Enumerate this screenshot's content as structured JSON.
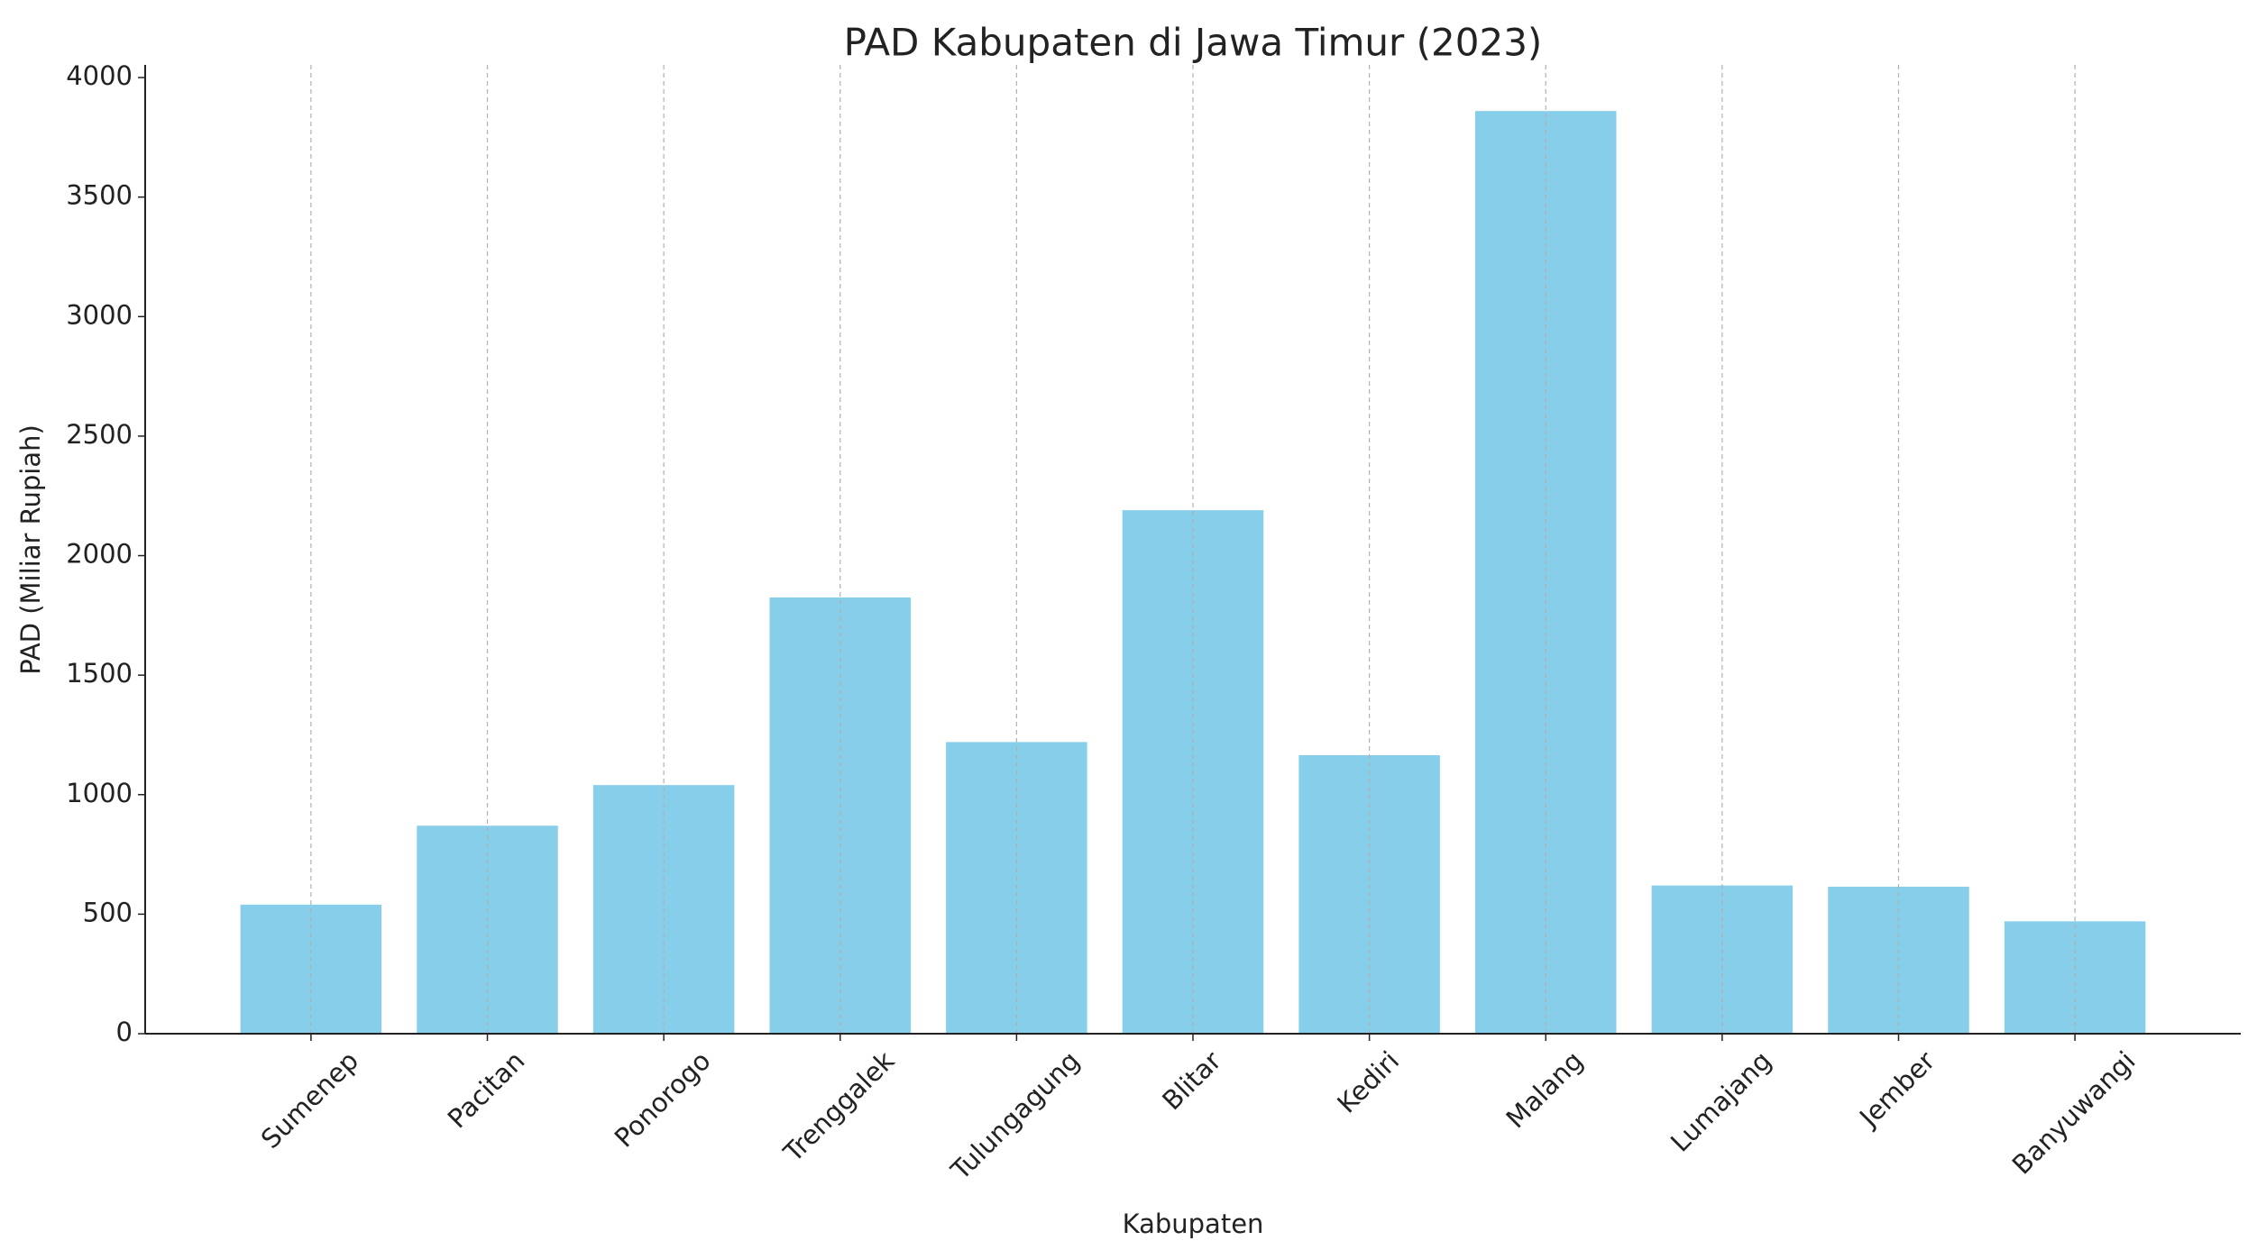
{
  "chart_data": {
    "type": "bar",
    "title": "PAD Kabupaten di Jawa Timur (2023)",
    "x_label": "Kabupaten",
    "y_label": "PAD (Miliar Rupiah)",
    "categories": [
      "Sumenep",
      "Pacitan",
      "Ponorogo",
      "Trenggalek",
      "Tulungagung",
      "Blitar",
      "Kediri",
      "Malang",
      "Lumajang",
      "Jember",
      "Banyuwangi"
    ],
    "values": [
      540,
      870,
      1040,
      1825,
      1220,
      2190,
      1165,
      3860,
      620,
      615,
      470
    ],
    "color": "#87ceeb",
    "ylim": [
      0,
      4053
    ],
    "yticks": [
      0,
      500,
      1000,
      1500,
      2000,
      2500,
      3000,
      3500,
      4000
    ],
    "grid": true
  }
}
